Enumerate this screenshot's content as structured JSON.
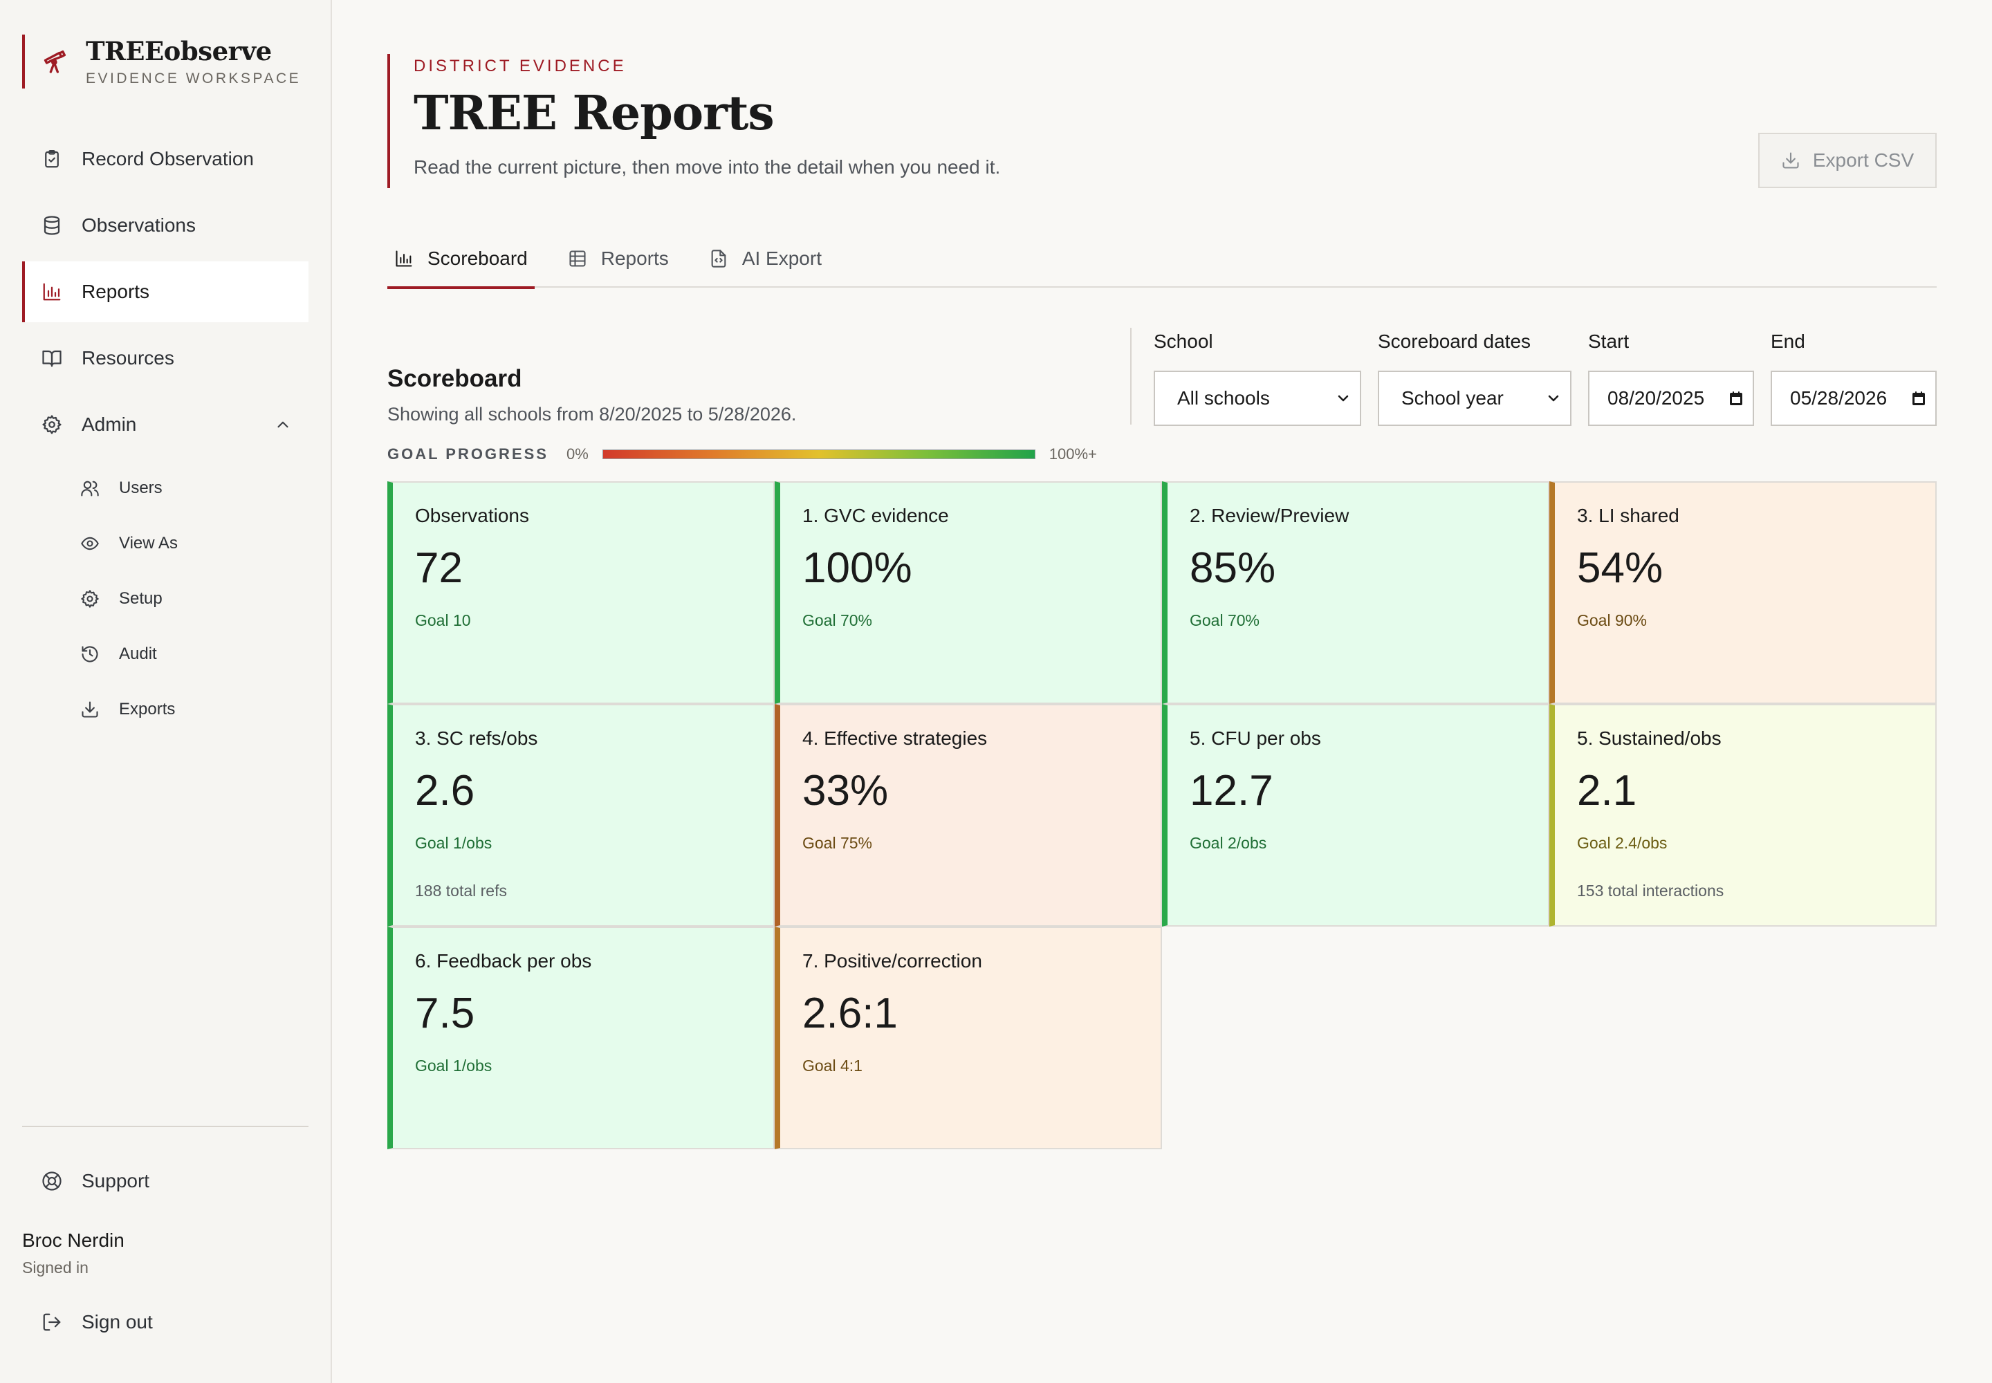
{
  "brand": {
    "name": "TREEobserve",
    "subtitle": "EVIDENCE WORKSPACE"
  },
  "sidebar": {
    "items": [
      {
        "label": "Record Observation",
        "icon": "clipboard-check-icon"
      },
      {
        "label": "Observations",
        "icon": "database-icon"
      },
      {
        "label": "Reports",
        "icon": "bar-chart-icon",
        "active": true
      },
      {
        "label": "Resources",
        "icon": "book-icon"
      },
      {
        "label": "Admin",
        "icon": "gear-icon",
        "expanded": true
      }
    ],
    "admin_items": [
      {
        "label": "Users",
        "icon": "users-icon"
      },
      {
        "label": "View As",
        "icon": "eye-icon"
      },
      {
        "label": "Setup",
        "icon": "gear-icon"
      },
      {
        "label": "Audit",
        "icon": "history-icon"
      },
      {
        "label": "Exports",
        "icon": "download-icon"
      }
    ],
    "support_label": "Support",
    "user": {
      "name": "Broc Nerdin",
      "status": "Signed in"
    },
    "signout_label": "Sign out"
  },
  "header": {
    "eyebrow": "DISTRICT EVIDENCE",
    "title": "TREE Reports",
    "description": "Read the current picture, then move into the detail when you need it.",
    "export_label": "Export CSV"
  },
  "tabs": [
    {
      "label": "Scoreboard",
      "icon": "bar-chart-icon",
      "active": true
    },
    {
      "label": "Reports",
      "icon": "table-icon"
    },
    {
      "label": "AI Export",
      "icon": "file-code-icon"
    }
  ],
  "scoreboard": {
    "title": "Scoreboard",
    "subtitle": "Showing all schools from 8/20/2025 to 5/28/2026.",
    "goal_progress": {
      "label": "GOAL PROGRESS",
      "min": "0%",
      "max": "100%+"
    }
  },
  "filters": {
    "school": {
      "label": "School",
      "value": "All schools"
    },
    "dates": {
      "label": "Scoreboard dates",
      "value": "School year"
    },
    "start": {
      "label": "Start",
      "value": "08/20/2025"
    },
    "end": {
      "label": "End",
      "value": "05/28/2026"
    }
  },
  "colors": {
    "accent": "#9e1b24",
    "status_green": "#2aa84a",
    "status_orange": "#b57827",
    "status_yellow": "#afb430"
  },
  "cards": [
    {
      "title": "Observations",
      "value": "72",
      "goal": "Goal 10",
      "extra": "",
      "status": "green"
    },
    {
      "title": "1. GVC evidence",
      "value": "100%",
      "goal": "Goal 70%",
      "extra": "",
      "status": "green"
    },
    {
      "title": "2. Review/Preview",
      "value": "85%",
      "goal": "Goal 70%",
      "extra": "",
      "status": "green"
    },
    {
      "title": "3. LI shared",
      "value": "54%",
      "goal": "Goal 90%",
      "extra": "",
      "status": "orange"
    },
    {
      "title": "3. SC refs/obs",
      "value": "2.6",
      "goal": "Goal 1/obs",
      "extra": "188 total refs",
      "status": "green"
    },
    {
      "title": "4. Effective strategies",
      "value": "33%",
      "goal": "Goal 75%",
      "extra": "",
      "status": "salmon"
    },
    {
      "title": "5. CFU per obs",
      "value": "12.7",
      "goal": "Goal 2/obs",
      "extra": "",
      "status": "green"
    },
    {
      "title": "5. Sustained/obs",
      "value": "2.1",
      "goal": "Goal 2.4/obs",
      "extra": "153 total interactions",
      "status": "yellow"
    },
    {
      "title": "6. Feedback per obs",
      "value": "7.5",
      "goal": "Goal 1/obs",
      "extra": "",
      "status": "green"
    },
    {
      "title": "7. Positive/correction",
      "value": "2.6:1",
      "goal": "Goal 4:1",
      "extra": "",
      "status": "orange"
    }
  ]
}
